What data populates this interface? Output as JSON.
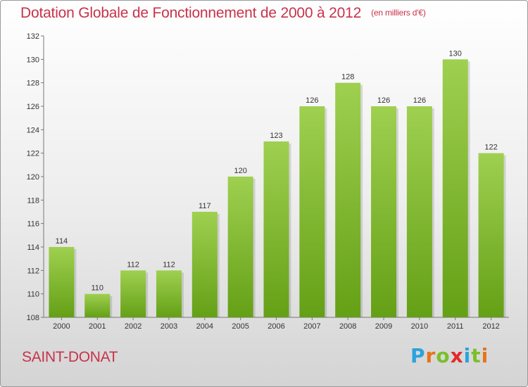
{
  "header": {
    "title": "Dotation Globale de Fonctionnement de 2000 à 2012",
    "unit": "(en milliers d'€)"
  },
  "commune": "SAINT-DONAT",
  "brand": {
    "letters": [
      "P",
      "r",
      "o",
      "x",
      "i",
      "t",
      "i"
    ],
    "colors": [
      "#2aa3dc",
      "#e8731a",
      "#7bbf2a",
      "#e12b2b",
      "#2aa3dc",
      "#7bbf2a",
      "#e8731a"
    ]
  },
  "colors": {
    "bar_light": "#9fd050",
    "bar_dark": "#64a016",
    "accent": "#c8324a"
  },
  "chart_data": {
    "type": "bar",
    "title": "Dotation Globale de Fonctionnement de 2000 à 2012",
    "subtitle": "(en milliers d'€)",
    "categories": [
      "2000",
      "2001",
      "2002",
      "2003",
      "2004",
      "2005",
      "2006",
      "2007",
      "2008",
      "2009",
      "2010",
      "2011",
      "2012"
    ],
    "values": [
      114,
      110,
      112,
      112,
      117,
      120,
      123,
      126,
      128,
      126,
      126,
      130,
      122
    ],
    "data_labels": [
      "114",
      "110",
      "112",
      "112",
      "117",
      "120",
      "123",
      "126",
      "128",
      "126",
      "126",
      "130",
      "122"
    ],
    "ylim": [
      108,
      132
    ],
    "yticks": [
      108,
      110,
      112,
      114,
      116,
      118,
      120,
      122,
      124,
      126,
      128,
      130,
      132
    ],
    "ytick_labels": [
      "108",
      "110",
      "112",
      "114",
      "116",
      "118",
      "120",
      "122",
      "124",
      "126",
      "128",
      "130",
      "132"
    ],
    "grid": false,
    "legend": "none"
  }
}
